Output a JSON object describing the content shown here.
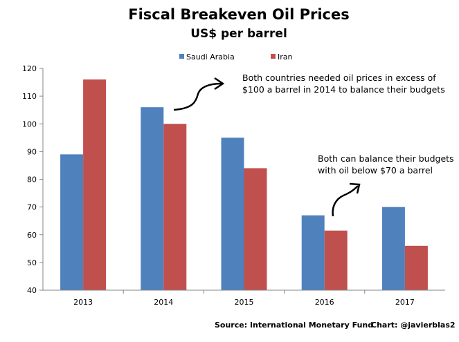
{
  "chart_data": {
    "type": "bar",
    "title": "Fiscal Breakeven Oil Prices",
    "subtitle": "US$ per barrel",
    "categories": [
      "2013",
      "2014",
      "2015",
      "2016",
      "2017"
    ],
    "series": [
      {
        "name": "Saudi Arabia",
        "color": "#4f81bd",
        "values": [
          89,
          106,
          95,
          67,
          70
        ]
      },
      {
        "name": "Iran",
        "color": "#c0504d",
        "values": [
          116,
          100,
          84,
          61.5,
          56
        ]
      }
    ],
    "ylim": [
      40,
      120
    ],
    "yticks": [
      "40",
      "50",
      "60",
      "70",
      "80",
      "90",
      "100",
      "110",
      "120"
    ],
    "legend_position": "top-center",
    "grid": false,
    "annotations": [
      {
        "lines": [
          "Both countries needed oil prices in excess of",
          "$100 a barrel in 2014 to balance their budgets"
        ]
      },
      {
        "lines": [
          "Both can balance their budgets",
          "with oil below $70 a barrel"
        ]
      }
    ],
    "source": "Source: International  Monetary Fund",
    "credit": "Chart: @javierblas2"
  }
}
